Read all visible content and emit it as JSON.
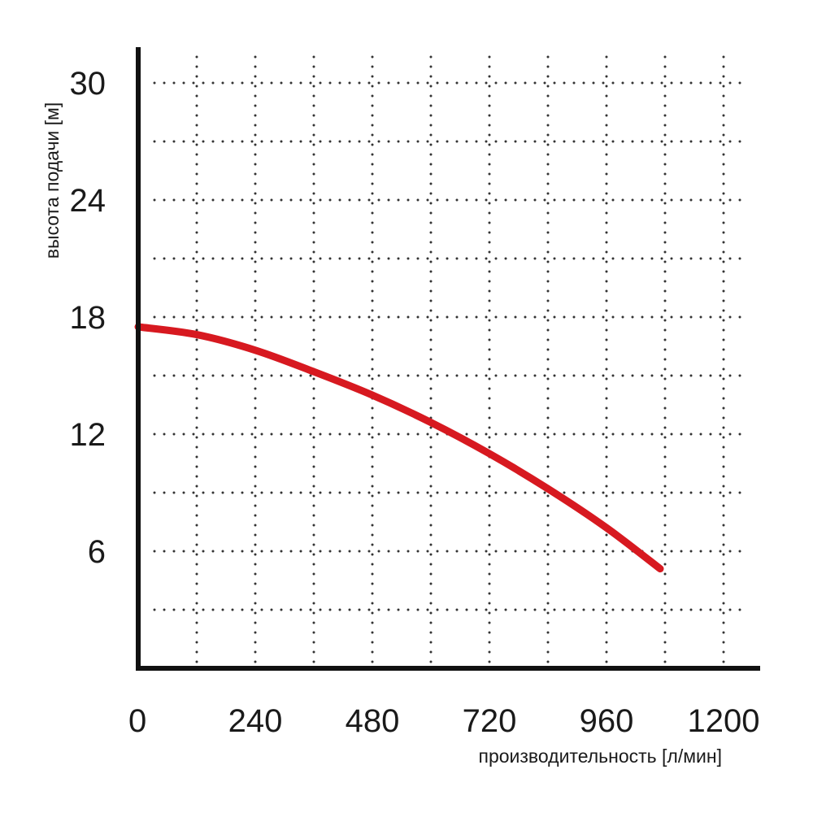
{
  "chart_data": {
    "type": "line",
    "title": "",
    "xlabel": "производительность [л/мин]",
    "ylabel": "высота подачи [м]",
    "xlim": [
      0,
      1200
    ],
    "ylim": [
      0,
      30
    ],
    "x_ticks": [
      0,
      240,
      480,
      720,
      960,
      1200
    ],
    "x_tick_labels": [
      "0",
      "240",
      "480",
      "720",
      "960",
      "1200"
    ],
    "y_ticks": [
      6,
      12,
      18,
      24,
      30
    ],
    "y_tick_labels": [
      "6",
      "12",
      "18",
      "24",
      "30"
    ],
    "grid": true,
    "x_grid_step": 120,
    "y_grid_step": 3,
    "legend": "none",
    "series": [
      {
        "color": "#d71920",
        "x": [
          0,
          120,
          240,
          360,
          480,
          600,
          720,
          840,
          960,
          1070
        ],
        "y": [
          17.5,
          17.1,
          16.3,
          15.2,
          14.0,
          12.6,
          11.0,
          9.2,
          7.2,
          5.1
        ]
      }
    ]
  }
}
